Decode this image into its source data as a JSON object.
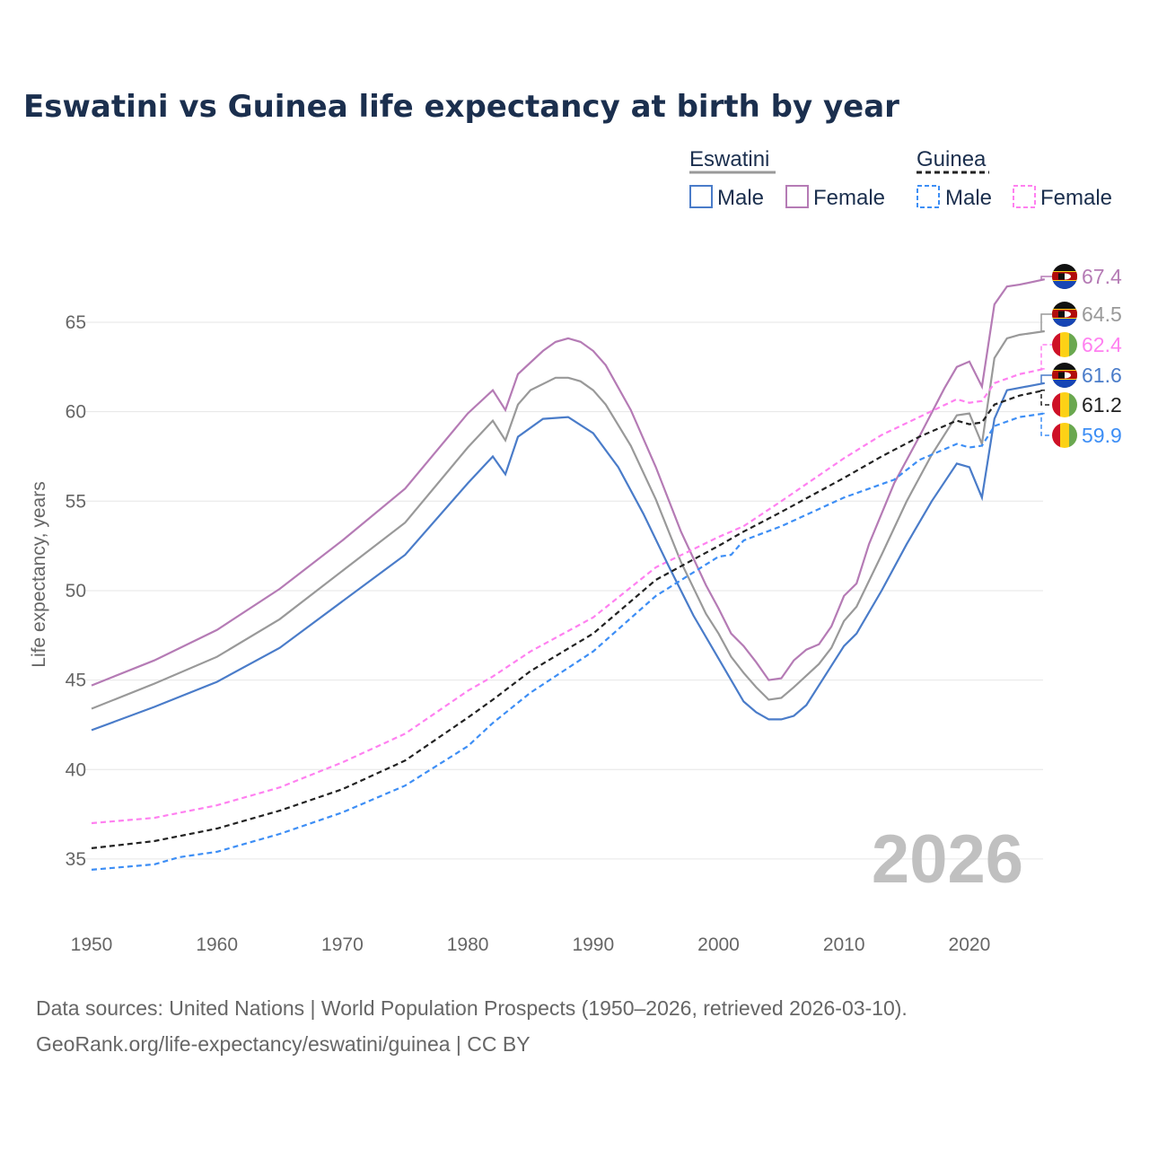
{
  "chart_data": {
    "type": "line",
    "title": "Eswatini vs Guinea life expectancy at birth by year",
    "xlabel": "",
    "ylabel": "Life expectancy, years",
    "xlim": [
      1950,
      2026
    ],
    "ylim": [
      32,
      68
    ],
    "x_ticks": [
      "1950",
      "1960",
      "1970",
      "1980",
      "1990",
      "2000",
      "2010",
      "2020"
    ],
    "y_ticks": [
      "35",
      "40",
      "45",
      "50",
      "55",
      "60",
      "65"
    ],
    "grid": true,
    "watermark_year": "2026",
    "legend": {
      "placement": "top-right",
      "groups": [
        {
          "name": "Eswatini",
          "items": [
            "Male",
            "Female"
          ]
        },
        {
          "name": "Guinea",
          "items": [
            "Male",
            "Female"
          ]
        }
      ]
    },
    "series": [
      {
        "name": "Eswatini Female",
        "color": "#b57bb5",
        "dashed": false,
        "flag": "eswatini",
        "end_label": "67.4",
        "points": [
          [
            1950,
            44.7
          ],
          [
            1955,
            46.1
          ],
          [
            1960,
            47.8
          ],
          [
            1965,
            50.1
          ],
          [
            1970,
            52.8
          ],
          [
            1975,
            55.7
          ],
          [
            1980,
            59.9
          ],
          [
            1982,
            61.2
          ],
          [
            1983,
            60.1
          ],
          [
            1984,
            62.1
          ],
          [
            1986,
            63.4
          ],
          [
            1987,
            63.9
          ],
          [
            1988,
            64.1
          ],
          [
            1989,
            63.9
          ],
          [
            1990,
            63.4
          ],
          [
            1991,
            62.6
          ],
          [
            1993,
            60.1
          ],
          [
            1995,
            56.9
          ],
          [
            1997,
            53.3
          ],
          [
            1999,
            50.3
          ],
          [
            2000,
            49.0
          ],
          [
            2001,
            47.6
          ],
          [
            2002,
            46.9
          ],
          [
            2003,
            46.0
          ],
          [
            2004,
            45.0
          ],
          [
            2005,
            45.1
          ],
          [
            2006,
            46.1
          ],
          [
            2007,
            46.7
          ],
          [
            2008,
            47.0
          ],
          [
            2009,
            48.0
          ],
          [
            2010,
            49.7
          ],
          [
            2011,
            50.4
          ],
          [
            2012,
            52.6
          ],
          [
            2014,
            56.0
          ],
          [
            2016,
            58.6
          ],
          [
            2018,
            61.3
          ],
          [
            2019,
            62.5
          ],
          [
            2020,
            62.8
          ],
          [
            2021,
            61.4
          ],
          [
            2022,
            66.0
          ],
          [
            2023,
            67.0
          ],
          [
            2024,
            67.1
          ],
          [
            2026,
            67.4
          ]
        ]
      },
      {
        "name": "Eswatini",
        "color": "#999999",
        "dashed": false,
        "flag": "eswatini",
        "end_label": "64.5",
        "points": [
          [
            1950,
            43.4
          ],
          [
            1955,
            44.8
          ],
          [
            1960,
            46.3
          ],
          [
            1965,
            48.4
          ],
          [
            1970,
            51.1
          ],
          [
            1975,
            53.8
          ],
          [
            1980,
            58.0
          ],
          [
            1982,
            59.5
          ],
          [
            1983,
            58.4
          ],
          [
            1984,
            60.4
          ],
          [
            1985,
            61.2
          ],
          [
            1987,
            61.9
          ],
          [
            1988,
            61.9
          ],
          [
            1989,
            61.7
          ],
          [
            1990,
            61.2
          ],
          [
            1991,
            60.4
          ],
          [
            1993,
            58.1
          ],
          [
            1995,
            55.1
          ],
          [
            1997,
            51.6
          ],
          [
            1999,
            48.7
          ],
          [
            2000,
            47.6
          ],
          [
            2001,
            46.3
          ],
          [
            2002,
            45.4
          ],
          [
            2003,
            44.6
          ],
          [
            2004,
            43.9
          ],
          [
            2005,
            44.0
          ],
          [
            2006,
            44.6
          ],
          [
            2008,
            45.9
          ],
          [
            2009,
            46.8
          ],
          [
            2010,
            48.3
          ],
          [
            2011,
            49.1
          ],
          [
            2013,
            52.0
          ],
          [
            2015,
            55.0
          ],
          [
            2017,
            57.6
          ],
          [
            2019,
            59.8
          ],
          [
            2020,
            59.9
          ],
          [
            2021,
            58.2
          ],
          [
            2022,
            63.0
          ],
          [
            2023,
            64.1
          ],
          [
            2024,
            64.3
          ],
          [
            2026,
            64.5
          ]
        ]
      },
      {
        "name": "Guinea Female",
        "color": "#ff80f0",
        "dashed": true,
        "flag": "guinea",
        "end_label": "62.4",
        "points": [
          [
            1950,
            37.0
          ],
          [
            1955,
            37.3
          ],
          [
            1960,
            38.0
          ],
          [
            1965,
            39.0
          ],
          [
            1970,
            40.4
          ],
          [
            1975,
            42.0
          ],
          [
            1980,
            44.4
          ],
          [
            1982,
            45.2
          ],
          [
            1985,
            46.6
          ],
          [
            1990,
            48.5
          ],
          [
            1995,
            51.3
          ],
          [
            2000,
            53.0
          ],
          [
            2002,
            53.6
          ],
          [
            2005,
            55.0
          ],
          [
            2010,
            57.4
          ],
          [
            2013,
            58.7
          ],
          [
            2016,
            59.7
          ],
          [
            2019,
            60.7
          ],
          [
            2020,
            60.5
          ],
          [
            2021,
            60.6
          ],
          [
            2022,
            61.6
          ],
          [
            2024,
            62.1
          ],
          [
            2026,
            62.4
          ]
        ]
      },
      {
        "name": "Eswatini Male",
        "color": "#4a7cc9",
        "dashed": false,
        "flag": "eswatini",
        "end_label": "61.6",
        "points": [
          [
            1950,
            42.2
          ],
          [
            1955,
            43.5
          ],
          [
            1960,
            44.9
          ],
          [
            1965,
            46.8
          ],
          [
            1970,
            49.4
          ],
          [
            1975,
            52.0
          ],
          [
            1980,
            56.0
          ],
          [
            1982,
            57.5
          ],
          [
            1983,
            56.5
          ],
          [
            1984,
            58.6
          ],
          [
            1986,
            59.6
          ],
          [
            1988,
            59.7
          ],
          [
            1990,
            58.8
          ],
          [
            1992,
            56.9
          ],
          [
            1994,
            54.3
          ],
          [
            1996,
            51.4
          ],
          [
            1998,
            48.6
          ],
          [
            2000,
            46.2
          ],
          [
            2002,
            43.8
          ],
          [
            2003,
            43.2
          ],
          [
            2004,
            42.8
          ],
          [
            2005,
            42.8
          ],
          [
            2006,
            43.0
          ],
          [
            2007,
            43.6
          ],
          [
            2010,
            46.9
          ],
          [
            2011,
            47.6
          ],
          [
            2013,
            50.0
          ],
          [
            2015,
            52.6
          ],
          [
            2017,
            55.0
          ],
          [
            2019,
            57.1
          ],
          [
            2020,
            56.9
          ],
          [
            2021,
            55.2
          ],
          [
            2022,
            59.6
          ],
          [
            2023,
            61.2
          ],
          [
            2026,
            61.6
          ]
        ]
      },
      {
        "name": "Guinea",
        "color": "#222222",
        "dashed": true,
        "flag": "guinea",
        "end_label": "61.2",
        "points": [
          [
            1950,
            35.6
          ],
          [
            1955,
            36.0
          ],
          [
            1960,
            36.7
          ],
          [
            1965,
            37.7
          ],
          [
            1970,
            38.9
          ],
          [
            1975,
            40.5
          ],
          [
            1980,
            42.9
          ],
          [
            1982,
            43.9
          ],
          [
            1985,
            45.5
          ],
          [
            1990,
            47.6
          ],
          [
            1995,
            50.6
          ],
          [
            2000,
            52.5
          ],
          [
            2002,
            53.3
          ],
          [
            2005,
            54.4
          ],
          [
            2010,
            56.3
          ],
          [
            2013,
            57.5
          ],
          [
            2016,
            58.6
          ],
          [
            2019,
            59.5
          ],
          [
            2020,
            59.3
          ],
          [
            2021,
            59.4
          ],
          [
            2022,
            60.4
          ],
          [
            2024,
            60.9
          ],
          [
            2026,
            61.2
          ]
        ]
      },
      {
        "name": "Guinea Male",
        "color": "#3d8ef5",
        "dashed": true,
        "flag": "guinea",
        "end_label": "59.9",
        "points": [
          [
            1950,
            34.4
          ],
          [
            1955,
            34.7
          ],
          [
            1957,
            35.1
          ],
          [
            1960,
            35.4
          ],
          [
            1965,
            36.4
          ],
          [
            1970,
            37.6
          ],
          [
            1975,
            39.1
          ],
          [
            1980,
            41.3
          ],
          [
            1982,
            42.6
          ],
          [
            1985,
            44.3
          ],
          [
            1990,
            46.6
          ],
          [
            1995,
            49.7
          ],
          [
            2000,
            51.9
          ],
          [
            2001,
            52.0
          ],
          [
            2002,
            52.8
          ],
          [
            2005,
            53.6
          ],
          [
            2010,
            55.2
          ],
          [
            2014,
            56.2
          ],
          [
            2016,
            57.3
          ],
          [
            2019,
            58.2
          ],
          [
            2020,
            58.0
          ],
          [
            2021,
            58.1
          ],
          [
            2022,
            59.2
          ],
          [
            2024,
            59.7
          ],
          [
            2026,
            59.9
          ]
        ]
      }
    ]
  },
  "footer": {
    "line1": "Data sources: United Nations | World Population Prospects (1950–2026, retrieved 2026-03-10).",
    "line2": "GeoRank.org/life-expectancy/eswatini/guinea | CC BY"
  }
}
